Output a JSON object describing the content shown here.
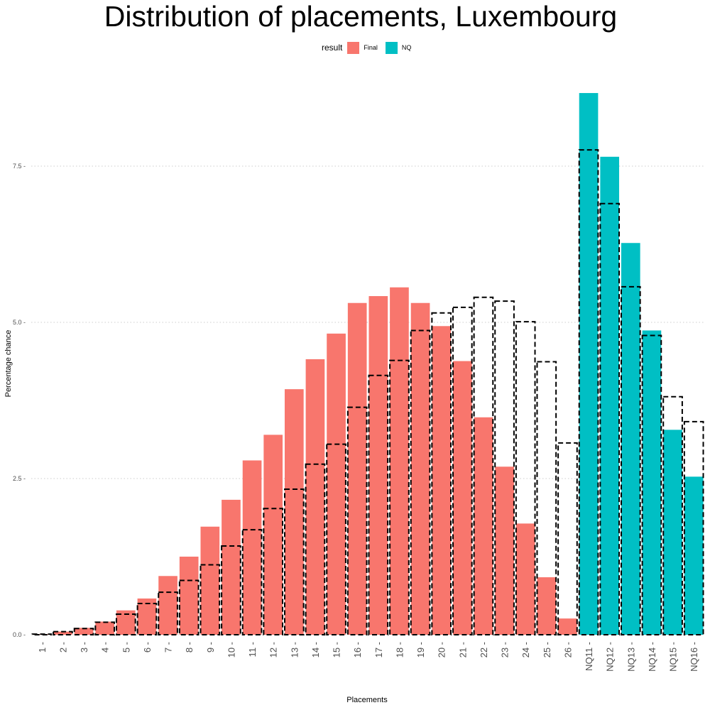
{
  "chart_data": {
    "type": "bar",
    "title": "Distribution of placements, Luxembourg",
    "xlabel": "Placements",
    "ylabel": "Percentage chance",
    "categories": [
      "1",
      "2",
      "3",
      "4",
      "5",
      "6",
      "7",
      "8",
      "9",
      "10",
      "11",
      "12",
      "13",
      "14",
      "15",
      "16",
      "17",
      "18",
      "19",
      "20",
      "21",
      "22",
      "23",
      "24",
      "25",
      "26",
      "NQ11",
      "NQ12",
      "NQ13",
      "NQ14",
      "NQ15",
      "NQ16"
    ],
    "result": [
      "Final",
      "Final",
      "Final",
      "Final",
      "Final",
      "Final",
      "Final",
      "Final",
      "Final",
      "Final",
      "Final",
      "Final",
      "Final",
      "Final",
      "Final",
      "Final",
      "Final",
      "Final",
      "Final",
      "Final",
      "Final",
      "Final",
      "Final",
      "Final",
      "Final",
      "Final",
      "NQ",
      "NQ",
      "NQ",
      "NQ",
      "NQ",
      "NQ"
    ],
    "values": [
      0.01,
      0.05,
      0.11,
      0.21,
      0.39,
      0.58,
      0.94,
      1.25,
      1.73,
      2.16,
      2.79,
      3.2,
      3.93,
      4.41,
      4.82,
      5.31,
      5.42,
      5.56,
      5.31,
      4.94,
      4.38,
      3.48,
      2.69,
      1.78,
      0.92,
      0.26,
      8.67,
      7.65,
      6.27,
      4.87,
      3.28,
      2.53
    ],
    "outline_values": [
      0.01,
      0.05,
      0.1,
      0.2,
      0.33,
      0.5,
      0.68,
      0.87,
      1.12,
      1.42,
      1.68,
      2.02,
      2.33,
      2.73,
      3.05,
      3.64,
      4.15,
      4.39,
      4.87,
      5.15,
      5.24,
      5.4,
      5.34,
      5.01,
      4.37,
      3.07,
      7.76,
      6.9,
      5.57,
      4.79,
      3.81,
      3.41
    ],
    "legend": {
      "title": "result",
      "entries": [
        {
          "label": "Final",
          "color": "#F8766D"
        },
        {
          "label": "NQ",
          "color": "#00BFC4"
        }
      ],
      "position": "top"
    },
    "y_ticks": [
      {
        "value": 0,
        "label": "0.0"
      },
      {
        "value": 2.5,
        "label": "2.5"
      },
      {
        "value": 5,
        "label": "5.0"
      },
      {
        "value": 7.5,
        "label": "7.5"
      }
    ],
    "ylim": [
      0,
      9
    ],
    "grid": "horizontal dotted",
    "outline_style": "black dashed"
  }
}
